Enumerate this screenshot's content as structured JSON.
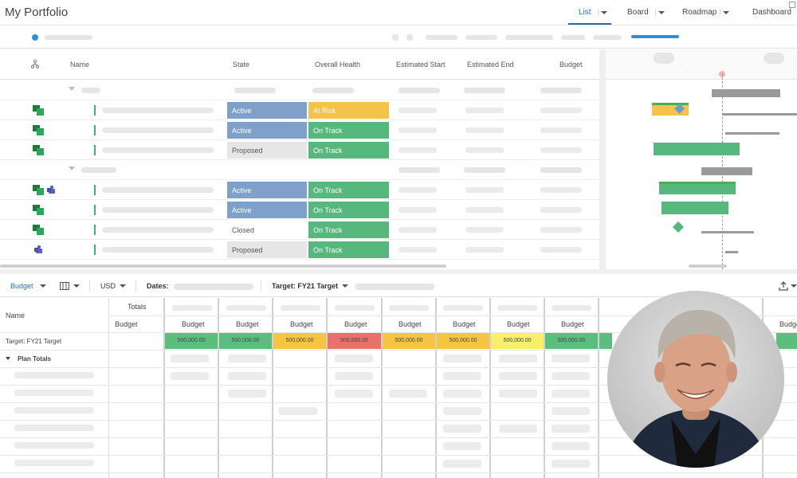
{
  "header": {
    "title": "My Portfolio",
    "tabs": [
      {
        "label": "List",
        "active": true
      },
      {
        "label": "Board",
        "active": false
      },
      {
        "label": "Roadmap",
        "active": false
      },
      {
        "label": "Dashboard",
        "active": false
      }
    ]
  },
  "grid": {
    "columns": [
      "Name",
      "State",
      "Overall Health",
      "Estimated Start",
      "Estimated End",
      "Budget"
    ],
    "rows": [
      {
        "type": "group"
      },
      {
        "type": "project",
        "state": "Active",
        "health": "At Risk"
      },
      {
        "type": "project",
        "state": "Active",
        "health": "On Track"
      },
      {
        "type": "project",
        "state": "Proposed",
        "health": "On Track"
      },
      {
        "type": "group"
      },
      {
        "type": "project",
        "state": "Active",
        "health": "On Track"
      },
      {
        "type": "project",
        "state": "Active",
        "health": "On Track"
      },
      {
        "type": "project",
        "state": "Closed",
        "health": "On Track"
      },
      {
        "type": "project",
        "state": "Proposed",
        "health": "On Track"
      }
    ]
  },
  "budget_toolbar": {
    "view": "Budget",
    "currency": "USD",
    "dates_label": "Dates:",
    "target_label": "Target: FY21 Target"
  },
  "budget_grid": {
    "name_header": "Name",
    "totals_header": "Totals",
    "budget_sub": "Budget",
    "target_row_label": "Target: FY21 Target",
    "plan_totals_label": "Plan Totals",
    "target_value": "500,000.00"
  },
  "colors": {
    "accent": "#1f6fb5",
    "state_active": "#7fa0c8",
    "health_on_track": "#56b87d",
    "health_at_risk": "#f3c34a"
  }
}
